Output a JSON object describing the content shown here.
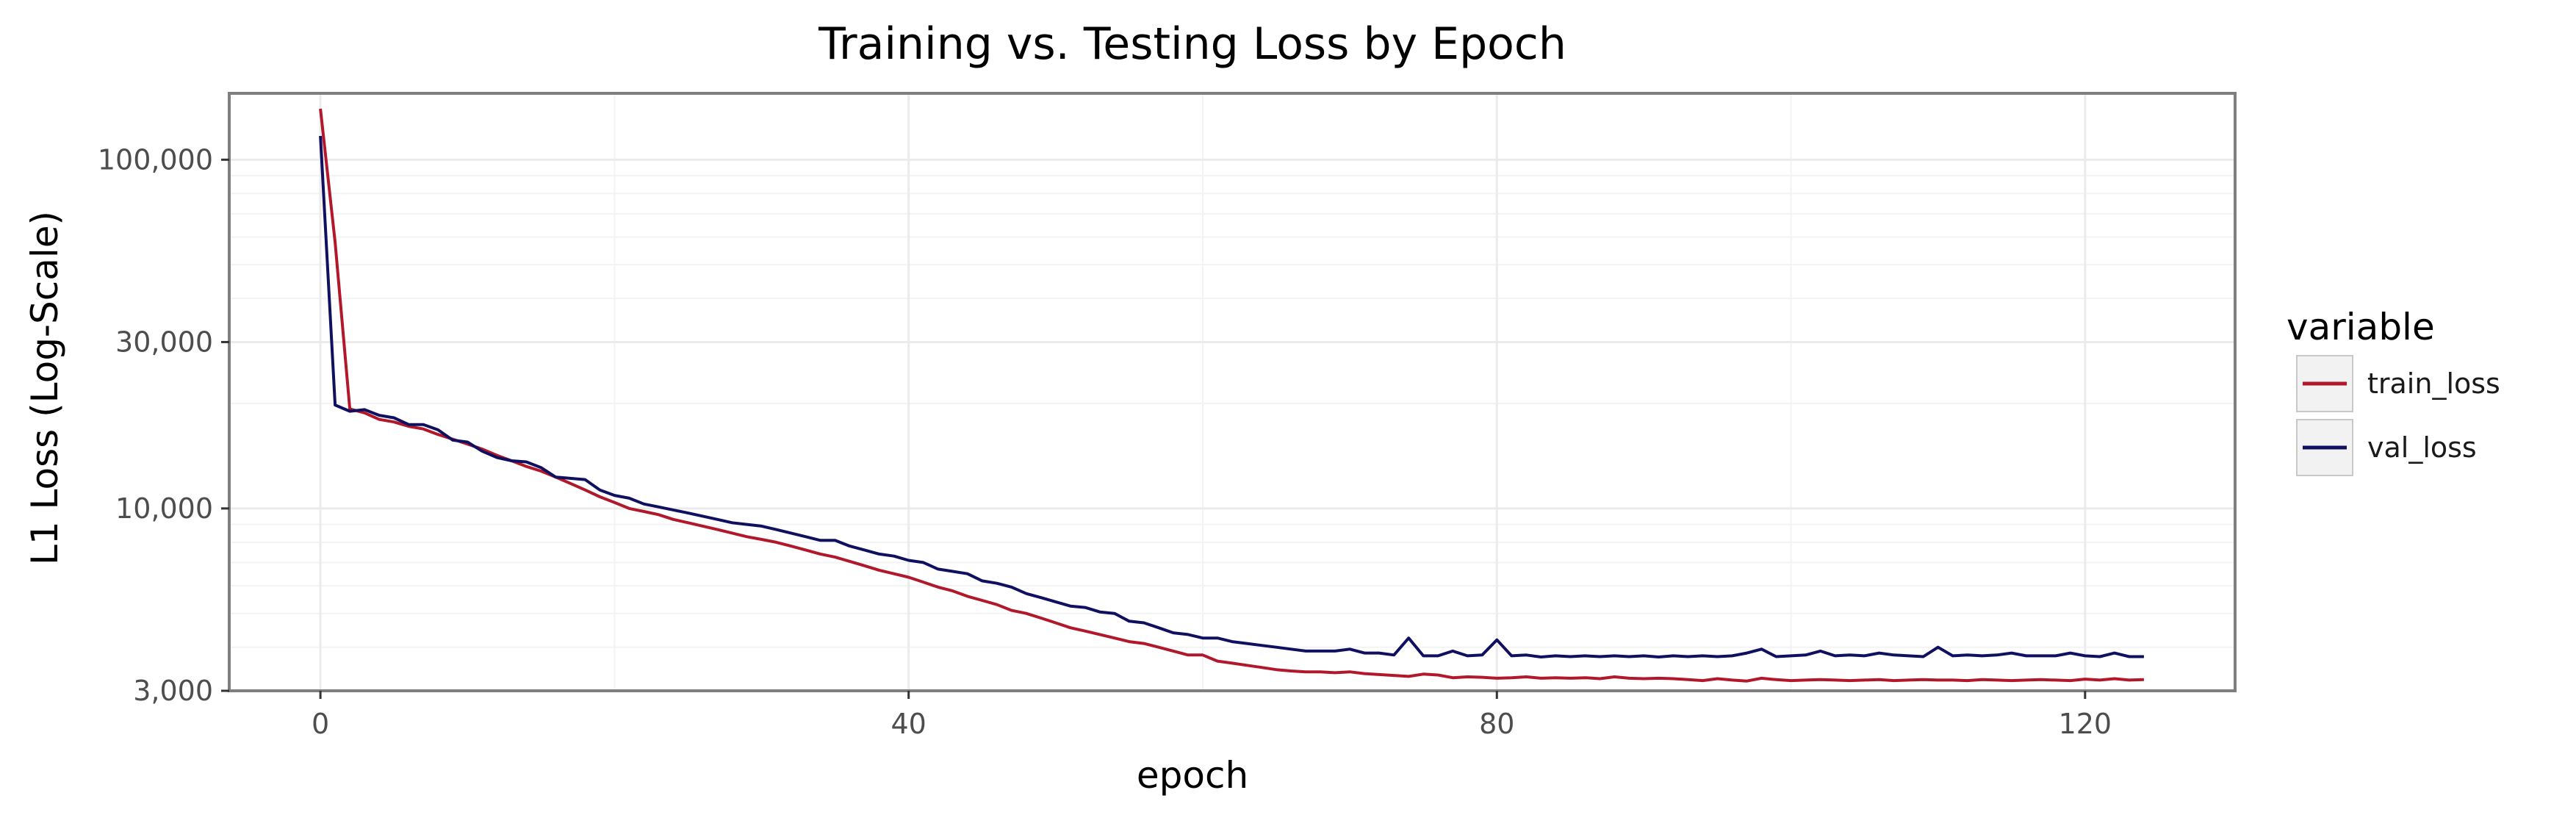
{
  "chart_data": {
    "type": "line",
    "title": "Training vs. Testing Loss by Epoch",
    "xlabel": "epoch",
    "ylabel": "L1 Loss (Log-Scale)",
    "y_scale": "log",
    "xlim": [
      -6.2,
      130.2
    ],
    "ylim": [
      3000,
      155000
    ],
    "x_ticks": [
      0,
      40,
      80,
      120
    ],
    "x_tick_labels": [
      "0",
      "40",
      "80",
      "120"
    ],
    "y_ticks": [
      3000,
      10000,
      30000,
      100000
    ],
    "y_tick_labels": [
      "3,000",
      "10,000",
      "30,000",
      "100,000"
    ],
    "grid": true,
    "legend": {
      "title": "variable",
      "placement": "right",
      "entries": [
        "train_loss",
        "val_loss"
      ]
    },
    "colors": {
      "train_loss": "#b2182b",
      "val_loss": "#101060",
      "panel_bg": "#ffffff",
      "grid": "#ebebeb",
      "border": "#7f7f7f"
    },
    "x": [
      0,
      1,
      2,
      3,
      4,
      5,
      6,
      7,
      8,
      9,
      10,
      11,
      12,
      13,
      14,
      15,
      16,
      17,
      18,
      19,
      20,
      21,
      22,
      23,
      24,
      25,
      26,
      27,
      28,
      29,
      30,
      31,
      32,
      33,
      34,
      35,
      36,
      37,
      38,
      39,
      40,
      41,
      42,
      43,
      44,
      45,
      46,
      47,
      48,
      49,
      50,
      51,
      52,
      53,
      54,
      55,
      56,
      57,
      58,
      59,
      60,
      61,
      62,
      63,
      64,
      65,
      66,
      67,
      68,
      69,
      70,
      71,
      72,
      73,
      74,
      75,
      76,
      77,
      78,
      79,
      80,
      81,
      82,
      83,
      84,
      85,
      86,
      87,
      88,
      89,
      90,
      91,
      92,
      93,
      94,
      95,
      96,
      97,
      98,
      99,
      100,
      101,
      102,
      103,
      104,
      105,
      106,
      107,
      108,
      109,
      110,
      111,
      112,
      113,
      114,
      115,
      116,
      117,
      118,
      119,
      120,
      121,
      122,
      123,
      124
    ],
    "series": [
      {
        "name": "train_loss",
        "values": [
          140000,
          58000,
          19300,
          18800,
          18000,
          17700,
          17200,
          16900,
          16300,
          15800,
          15300,
          14800,
          14200,
          13700,
          13200,
          12800,
          12300,
          11800,
          11300,
          10800,
          10400,
          10000,
          9800,
          9600,
          9300,
          9100,
          8900,
          8700,
          8500,
          8300,
          8150,
          8000,
          7800,
          7600,
          7400,
          7250,
          7050,
          6850,
          6650,
          6500,
          6350,
          6150,
          5950,
          5800,
          5600,
          5450,
          5300,
          5100,
          5000,
          4850,
          4700,
          4550,
          4450,
          4350,
          4250,
          4150,
          4100,
          4000,
          3900,
          3800,
          3800,
          3650,
          3600,
          3550,
          3500,
          3450,
          3420,
          3400,
          3400,
          3380,
          3400,
          3360,
          3340,
          3320,
          3300,
          3350,
          3330,
          3270,
          3290,
          3280,
          3260,
          3270,
          3290,
          3260,
          3270,
          3260,
          3270,
          3250,
          3290,
          3260,
          3250,
          3260,
          3250,
          3230,
          3210,
          3250,
          3220,
          3200,
          3260,
          3230,
          3210,
          3220,
          3230,
          3220,
          3210,
          3220,
          3230,
          3210,
          3220,
          3230,
          3220,
          3220,
          3210,
          3230,
          3220,
          3210,
          3220,
          3230,
          3220,
          3210,
          3240,
          3220,
          3250,
          3220,
          3230
        ]
      },
      {
        "name": "val_loss",
        "values": [
          117000,
          19800,
          19000,
          19200,
          18500,
          18200,
          17400,
          17400,
          16800,
          15700,
          15500,
          14600,
          14000,
          13700,
          13600,
          13100,
          12300,
          12200,
          12100,
          11300,
          10900,
          10700,
          10300,
          10100,
          9900,
          9700,
          9500,
          9300,
          9100,
          9000,
          8900,
          8700,
          8500,
          8300,
          8100,
          8100,
          7800,
          7600,
          7400,
          7300,
          7100,
          7000,
          6700,
          6600,
          6500,
          6200,
          6100,
          5950,
          5700,
          5550,
          5400,
          5250,
          5200,
          5050,
          5000,
          4750,
          4700,
          4550,
          4400,
          4350,
          4250,
          4250,
          4150,
          4100,
          4050,
          4000,
          3950,
          3900,
          3900,
          3900,
          3950,
          3850,
          3850,
          3800,
          4250,
          3780,
          3780,
          3900,
          3780,
          3800,
          4200,
          3780,
          3800,
          3750,
          3780,
          3760,
          3780,
          3760,
          3780,
          3760,
          3780,
          3750,
          3780,
          3760,
          3780,
          3760,
          3780,
          3850,
          3950,
          3760,
          3780,
          3800,
          3900,
          3780,
          3800,
          3780,
          3850,
          3800,
          3780,
          3760,
          4000,
          3780,
          3800,
          3780,
          3800,
          3850,
          3780,
          3780,
          3780,
          3850,
          3780,
          3760,
          3850,
          3760,
          3760
        ]
      }
    ]
  }
}
